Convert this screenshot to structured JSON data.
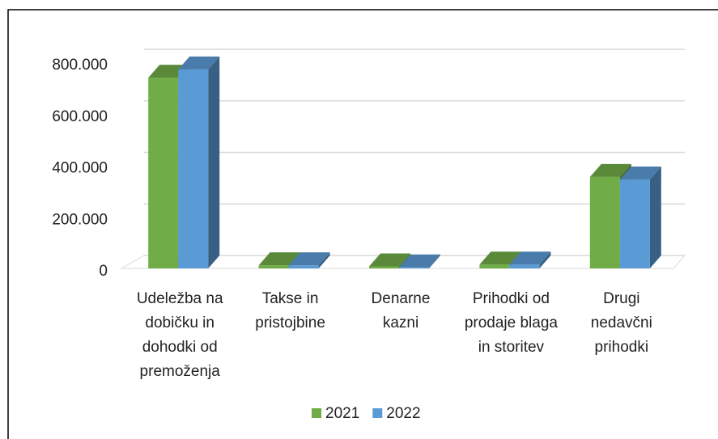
{
  "chart_data": {
    "type": "bar3d",
    "categories": [
      "Udeležba na dobičku in dohodki od premoženja",
      "Takse in pristojbine",
      "Denarne kazni",
      "Prihodki od prodaje blaga in storitev",
      "Drugi nedavčni prihodki"
    ],
    "series": [
      {
        "name": "2021",
        "color": "#70ad47",
        "values": [
          740000,
          12000,
          8000,
          15000,
          355000
        ]
      },
      {
        "name": "2022",
        "color": "#5b9bd5",
        "values": [
          772000,
          12000,
          4000,
          15000,
          345000
        ]
      }
    ],
    "ylim": [
      0,
      800000
    ],
    "yticks": [
      {
        "value": 0,
        "label": "0"
      },
      {
        "value": 200000,
        "label": "200.000"
      },
      {
        "value": 400000,
        "label": "400.000"
      },
      {
        "value": 600000,
        "label": "600.000"
      },
      {
        "value": 800000,
        "label": "800.000"
      }
    ],
    "grid": true,
    "legend": "bottom"
  }
}
